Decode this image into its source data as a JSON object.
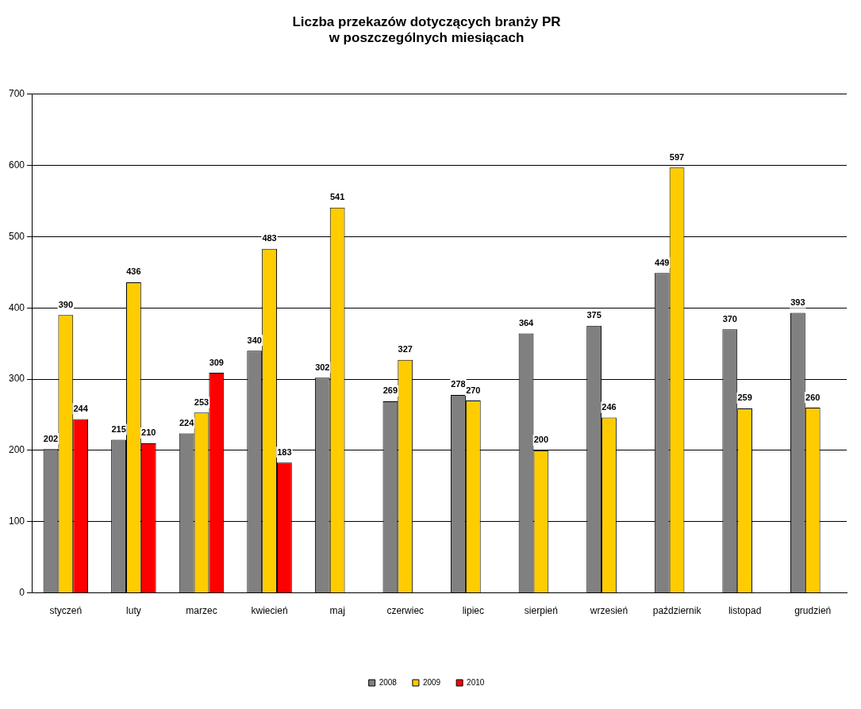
{
  "chart_data": {
    "type": "bar",
    "title": "Liczba przekazów dotyczących branży PR\nw poszczególnych miesiącach",
    "categories": [
      "styczeń",
      "luty",
      "marzec",
      "kwiecień",
      "maj",
      "czerwiec",
      "lipiec",
      "sierpień",
      "wrzesień",
      "październik",
      "listopad",
      "grudzień"
    ],
    "series": [
      {
        "name": "2008",
        "color": "#808080",
        "values": [
          202,
          215,
          224,
          340,
          302,
          269,
          278,
          364,
          375,
          449,
          370,
          393
        ]
      },
      {
        "name": "2009",
        "color": "#ffcc00",
        "values": [
          390,
          436,
          253,
          483,
          541,
          327,
          270,
          200,
          246,
          597,
          259,
          260
        ]
      },
      {
        "name": "2010",
        "color": "#ff0000",
        "values": [
          244,
          210,
          309,
          183,
          null,
          null,
          null,
          null,
          null,
          null,
          null,
          null
        ]
      }
    ],
    "ylim": [
      0,
      700
    ],
    "yticks": [
      0,
      100,
      200,
      300,
      400,
      500,
      600,
      700
    ],
    "grid": "y",
    "legend": "bottom",
    "data_labels": true
  }
}
